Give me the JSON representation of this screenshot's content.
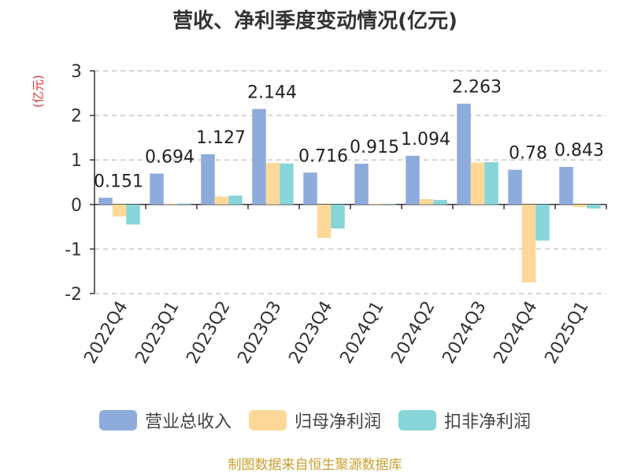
{
  "chart_data": {
    "type": "bar",
    "title": "营收、净利季度变动情况(亿元)",
    "ylabel": "(亿元)",
    "ylim": [
      -2,
      3
    ],
    "yticks": [
      -2,
      -1,
      0,
      1,
      2,
      3
    ],
    "grid": true,
    "legend_position": "bottom",
    "categories": [
      "2022Q4",
      "2023Q1",
      "2023Q2",
      "2023Q3",
      "2023Q4",
      "2024Q1",
      "2024Q2",
      "2024Q3",
      "2024Q4",
      "2025Q1"
    ],
    "series": [
      {
        "name": "营业总收入",
        "color": "#8eacdb",
        "values": [
          0.151,
          0.694,
          1.127,
          2.144,
          0.716,
          0.915,
          1.094,
          2.263,
          0.78,
          0.843
        ],
        "labels": [
          "0.151",
          "0.694",
          "1.127",
          "2.144",
          "0.716",
          "0.915",
          "1.094",
          "2.263",
          "0.78",
          "0.843"
        ]
      },
      {
        "name": "归母净利润",
        "color": "#fdd898",
        "values": [
          -0.27,
          0.01,
          0.18,
          0.93,
          -0.75,
          0.01,
          0.12,
          0.94,
          -1.75,
          -0.06
        ]
      },
      {
        "name": "扣非净利润",
        "color": "#87d5d8",
        "values": [
          -0.45,
          0.02,
          0.2,
          0.92,
          -0.54,
          0.01,
          0.1,
          0.95,
          -0.81,
          -0.09
        ]
      }
    ]
  },
  "source": "制图数据来自恒生聚源数据库"
}
